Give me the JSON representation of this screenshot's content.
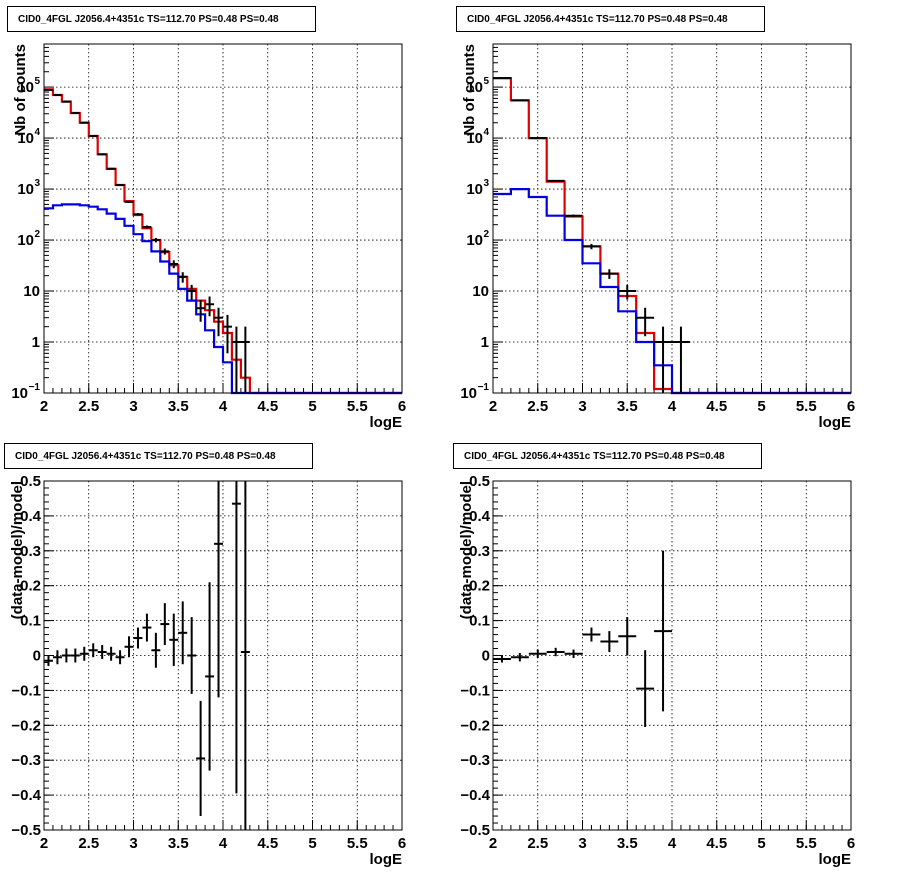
{
  "colors": {
    "data": "#000000",
    "total_model": "#e00000",
    "component_model": "#0000e0"
  },
  "chart_data": [
    {
      "type": "step-histogram",
      "title": "CID0_4FGL J2056.4+4351c TS=112.70 PS=0.48 PS=0.48",
      "xlabel": "logE",
      "ylabel": "Nb of counts",
      "xlim": [
        2,
        6
      ],
      "ylim": [
        0.1,
        700000
      ],
      "yscale": "log",
      "grid": true,
      "xticks": [
        "2",
        "2.5",
        "3",
        "3.5",
        "4",
        "4.5",
        "5",
        "5.5",
        "6"
      ],
      "yticks": [
        {
          "v": 0.1,
          "label": "10",
          "sup": "−1"
        },
        {
          "v": 1,
          "label": "1",
          "sup": ""
        },
        {
          "v": 10,
          "label": "10",
          "sup": ""
        },
        {
          "v": 100,
          "label": "10",
          "sup": "2"
        },
        {
          "v": 1000,
          "label": "10",
          "sup": "3"
        },
        {
          "v": 10000,
          "label": "10",
          "sup": "4"
        },
        {
          "v": 100000,
          "label": "10",
          "sup": "5"
        }
      ],
      "bin_width": 0.1,
      "series": [
        {
          "role": "total",
          "color": "#e00000",
          "x_start": 2.0,
          "values": [
            90000,
            70000,
            52000,
            31000,
            20000,
            11000,
            4800,
            2500,
            1200,
            580,
            310,
            170,
            100,
            58,
            32,
            19,
            11,
            6.5,
            4.2,
            2.5,
            1.5,
            0.45,
            0.2,
            0.1,
            0.1,
            0.1,
            0.1,
            0.1,
            0.1,
            0.1,
            0.1,
            0.1,
            0.1,
            0.1,
            0.1,
            0.1,
            0.1,
            0.1,
            0.1,
            0.1
          ]
        },
        {
          "role": "component",
          "color": "#0000e0",
          "x_start": 2.0,
          "values": [
            420,
            480,
            500,
            500,
            480,
            450,
            400,
            330,
            260,
            190,
            130,
            95,
            60,
            38,
            22,
            11,
            6.5,
            3.5,
            1.7,
            0.8,
            0.4,
            0.1,
            0.1,
            0.1,
            0.1,
            0.1,
            0.1,
            0.1,
            0.1,
            0.1,
            0.1,
            0.1,
            0.1,
            0.1,
            0.1,
            0.1,
            0.1,
            0.1,
            0.1,
            0.1
          ]
        }
      ],
      "points": [
        {
          "x": 2.05,
          "y": 88000,
          "lo": 87700,
          "hi": 88300
        },
        {
          "x": 2.15,
          "y": 70000,
          "lo": 69700,
          "hi": 70300
        },
        {
          "x": 2.25,
          "y": 52000,
          "lo": 51800,
          "hi": 52200
        },
        {
          "x": 2.35,
          "y": 31000,
          "lo": 30800,
          "hi": 31200
        },
        {
          "x": 2.45,
          "y": 20000,
          "lo": 19850,
          "hi": 20150
        },
        {
          "x": 2.55,
          "y": 11000,
          "lo": 10900,
          "hi": 11100
        },
        {
          "x": 2.65,
          "y": 4800,
          "lo": 4730,
          "hi": 4870
        },
        {
          "x": 2.75,
          "y": 2500,
          "lo": 2450,
          "hi": 2550
        },
        {
          "x": 2.85,
          "y": 1200,
          "lo": 1165,
          "hi": 1235
        },
        {
          "x": 2.95,
          "y": 560,
          "lo": 536,
          "hi": 584
        },
        {
          "x": 3.05,
          "y": 320,
          "lo": 302,
          "hi": 338
        },
        {
          "x": 3.15,
          "y": 180,
          "lo": 167,
          "hi": 193
        },
        {
          "x": 3.25,
          "y": 100,
          "lo": 90,
          "hi": 110
        },
        {
          "x": 3.35,
          "y": 60,
          "lo": 52,
          "hi": 68
        },
        {
          "x": 3.45,
          "y": 34,
          "lo": 28,
          "hi": 40
        },
        {
          "x": 3.55,
          "y": 19,
          "lo": 14.6,
          "hi": 23.4
        },
        {
          "x": 3.65,
          "y": 10,
          "lo": 6.8,
          "hi": 13.2
        },
        {
          "x": 3.75,
          "y": 4.6,
          "lo": 2.5,
          "hi": 6.7
        },
        {
          "x": 3.85,
          "y": 5.5,
          "lo": 3.2,
          "hi": 7.8
        },
        {
          "x": 3.95,
          "y": 3,
          "lo": 1.3,
          "hi": 4.7
        },
        {
          "x": 4.05,
          "y": 2,
          "lo": 0.6,
          "hi": 3.4
        },
        {
          "x": 4.15,
          "y": 1,
          "lo": 0.1,
          "hi": 2
        },
        {
          "x": 4.25,
          "y": 1,
          "lo": 0.1,
          "hi": 2
        }
      ]
    },
    {
      "type": "step-histogram",
      "title": "CID0_4FGL J2056.4+4351c TS=112.70 PS=0.48 PS=0.48",
      "xlabel": "logE",
      "ylabel": "Nb of counts",
      "xlim": [
        2,
        6
      ],
      "ylim": [
        0.1,
        700000
      ],
      "yscale": "log",
      "grid": true,
      "xticks": [
        "2",
        "2.5",
        "3",
        "3.5",
        "4",
        "4.5",
        "5",
        "5.5",
        "6"
      ],
      "yticks": [
        {
          "v": 0.1,
          "label": "10",
          "sup": "−1"
        },
        {
          "v": 1,
          "label": "1",
          "sup": ""
        },
        {
          "v": 10,
          "label": "10",
          "sup": ""
        },
        {
          "v": 100,
          "label": "10",
          "sup": "2"
        },
        {
          "v": 1000,
          "label": "10",
          "sup": "3"
        },
        {
          "v": 10000,
          "label": "10",
          "sup": "4"
        },
        {
          "v": 100000,
          "label": "10",
          "sup": "5"
        }
      ],
      "bin_width": 0.2,
      "series": [
        {
          "role": "total",
          "color": "#e00000",
          "x_start": 2.0,
          "values": [
            150000,
            55000,
            10000,
            1400,
            290,
            75,
            22,
            8,
            1.5,
            0.12,
            0.1,
            0.1,
            0.1,
            0.1,
            0.1,
            0.1,
            0.1,
            0.1,
            0.1,
            0.1
          ]
        },
        {
          "role": "component",
          "color": "#0000e0",
          "x_start": 2.0,
          "values": [
            800,
            1000,
            700,
            300,
            100,
            35,
            12,
            4,
            1,
            0.35,
            0.1,
            0.1,
            0.1,
            0.1,
            0.1,
            0.1,
            0.1,
            0.1,
            0.1,
            0.1
          ]
        }
      ],
      "points": [
        {
          "x": 2.1,
          "y": 150000,
          "lo": 149600,
          "hi": 150400
        },
        {
          "x": 2.3,
          "y": 55000,
          "lo": 54770,
          "hi": 55230
        },
        {
          "x": 2.5,
          "y": 10000,
          "lo": 9900,
          "hi": 10100
        },
        {
          "x": 2.7,
          "y": 1450,
          "lo": 1412,
          "hi": 1488
        },
        {
          "x": 2.9,
          "y": 300,
          "lo": 283,
          "hi": 317
        },
        {
          "x": 3.1,
          "y": 75,
          "lo": 66,
          "hi": 84
        },
        {
          "x": 3.3,
          "y": 22,
          "lo": 17.3,
          "hi": 26.7
        },
        {
          "x": 3.5,
          "y": 10,
          "lo": 6.8,
          "hi": 13.2
        },
        {
          "x": 3.7,
          "y": 3,
          "lo": 1.3,
          "hi": 4.7
        },
        {
          "x": 3.9,
          "y": 1,
          "lo": 0.1,
          "hi": 2
        },
        {
          "x": 4.1,
          "y": 1,
          "lo": 0.1,
          "hi": 2
        }
      ]
    },
    {
      "type": "scatter",
      "title": "CID0_4FGL J2056.4+4351c TS=112.70 PS=0.48 PS=0.48",
      "xlabel": "logE",
      "ylabel": "(data-model)/model",
      "xlim": [
        2,
        6
      ],
      "ylim": [
        -0.5,
        0.5
      ],
      "grid": true,
      "xticks": [
        "2",
        "2.5",
        "3",
        "3.5",
        "4",
        "4.5",
        "5",
        "5.5",
        "6"
      ],
      "yticks": [
        "−0.5",
        "−0.4",
        "−0.3",
        "−0.2",
        "−0.1",
        "0",
        "0.1",
        "0.2",
        "0.3",
        "0.4",
        "0.5"
      ],
      "half_width": 0.05,
      "points": [
        {
          "x": 2.05,
          "y": -0.015,
          "err": 0.015
        },
        {
          "x": 2.15,
          "y": -0.005,
          "err": 0.02
        },
        {
          "x": 2.25,
          "y": 0.0,
          "err": 0.02
        },
        {
          "x": 2.35,
          "y": 0.0,
          "err": 0.02
        },
        {
          "x": 2.45,
          "y": 0.005,
          "err": 0.02
        },
        {
          "x": 2.55,
          "y": 0.015,
          "err": 0.02
        },
        {
          "x": 2.65,
          "y": 0.01,
          "err": 0.02
        },
        {
          "x": 2.75,
          "y": 0.005,
          "err": 0.02
        },
        {
          "x": 2.85,
          "y": -0.005,
          "err": 0.02
        },
        {
          "x": 2.95,
          "y": 0.025,
          "err": 0.03
        },
        {
          "x": 3.05,
          "y": 0.05,
          "err": 0.03
        },
        {
          "x": 3.15,
          "y": 0.08,
          "err": 0.04
        },
        {
          "x": 3.25,
          "y": 0.015,
          "err": 0.05
        },
        {
          "x": 3.35,
          "y": 0.09,
          "err": 0.06
        },
        {
          "x": 3.45,
          "y": 0.045,
          "err": 0.075
        },
        {
          "x": 3.55,
          "y": 0.065,
          "err": 0.09
        },
        {
          "x": 3.65,
          "y": 0.0,
          "err": 0.11
        },
        {
          "x": 3.75,
          "y": -0.295,
          "err": 0.165
        },
        {
          "x": 3.85,
          "y": -0.06,
          "err": 0.27
        },
        {
          "x": 3.95,
          "y": 0.32,
          "err": 0.44
        },
        {
          "x": 4.15,
          "y": 0.435,
          "err": 0.83
        },
        {
          "x": 4.25,
          "y": 0.01,
          "err": 0.9
        }
      ]
    },
    {
      "type": "scatter",
      "title": "CID0_4FGL J2056.4+4351c TS=112.70 PS=0.48 PS=0.48",
      "xlabel": "logE",
      "ylabel": "(data-model)/model",
      "xlim": [
        2,
        6
      ],
      "ylim": [
        -0.5,
        0.5
      ],
      "grid": true,
      "xticks": [
        "2",
        "2.5",
        "3",
        "3.5",
        "4",
        "4.5",
        "5",
        "5.5",
        "6"
      ],
      "yticks": [
        "−0.5",
        "−0.4",
        "−0.3",
        "−0.2",
        "−0.1",
        "0",
        "0.1",
        "0.2",
        "0.3",
        "0.4",
        "0.5"
      ],
      "half_width": 0.1,
      "points": [
        {
          "x": 2.1,
          "y": -0.01,
          "err": 0.01
        },
        {
          "x": 2.3,
          "y": -0.005,
          "err": 0.012
        },
        {
          "x": 2.5,
          "y": 0.005,
          "err": 0.012
        },
        {
          "x": 2.7,
          "y": 0.01,
          "err": 0.012
        },
        {
          "x": 2.9,
          "y": 0.005,
          "err": 0.012
        },
        {
          "x": 3.1,
          "y": 0.06,
          "err": 0.02
        },
        {
          "x": 3.3,
          "y": 0.04,
          "err": 0.03
        },
        {
          "x": 3.5,
          "y": 0.055,
          "err": 0.055
        },
        {
          "x": 3.7,
          "y": -0.095,
          "err": 0.11
        },
        {
          "x": 3.9,
          "y": 0.07,
          "err": 0.23
        }
      ]
    }
  ]
}
